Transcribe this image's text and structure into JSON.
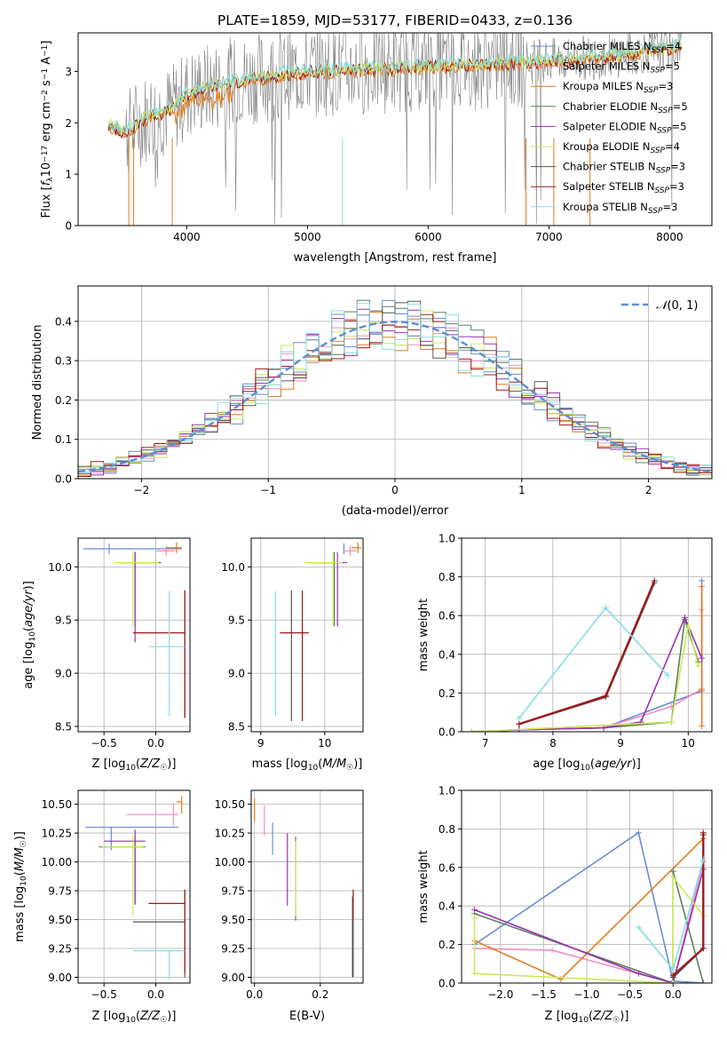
{
  "figure": {
    "title": "PLATE=1859, MJD=53177, FIBERID=0433, z=0.136"
  },
  "colors": {
    "chabrier_miles": "#6a8bd6",
    "salpeter_miles": "#f08fc0",
    "kroupa_miles": "#e07b1f",
    "chabrier_elodie": "#5f7f5f",
    "salpeter_elodie": "#9a32b0",
    "kroupa_elodie": "#cde85a",
    "chabrier_stelib": "#555555",
    "salpeter_stelib": "#a01818",
    "kroupa_stelib": "#86dde0",
    "normal": "#5a8fd6",
    "grid": "#b0b0b0"
  },
  "chart_data": [
    {
      "id": "spectrum",
      "type": "line",
      "title": "PLATE=1859, MJD=53177, FIBERID=0433, z=0.136",
      "xlabel": "wavelength [Angstrom, rest frame]",
      "ylabel_parts": [
        "Flux [",
        "f",
        "λ",
        "10",
        "−17",
        " erg cm",
        "−2",
        " s",
        "−1",
        " A",
        "−1",
        "]"
      ],
      "xlim": [
        3100,
        8350
      ],
      "ylim": [
        0,
        3.75
      ],
      "xticks": [
        4000,
        5000,
        6000,
        7000,
        8000
      ],
      "yticks": [
        0,
        1,
        2,
        3
      ],
      "data_line": {
        "x": [
          3350,
          3500,
          3600,
          3700,
          3800,
          3900,
          4000,
          4200,
          4500,
          5000,
          5500,
          6000,
          6500,
          7000,
          7500,
          8000,
          8100
        ],
        "y": [
          1.95,
          1.8,
          2.0,
          2.15,
          2.2,
          2.3,
          2.55,
          2.7,
          2.85,
          3.0,
          3.05,
          3.1,
          3.15,
          3.2,
          3.3,
          3.45,
          3.55
        ]
      },
      "legend": [
        {
          "series": "Chabrier MILES",
          "n": "4",
          "color_key": "chabrier_miles"
        },
        {
          "series": "Salpeter MILES",
          "n": "5",
          "color_key": "salpeter_miles"
        },
        {
          "series": "Kroupa MILES",
          "n": "3",
          "color_key": "kroupa_miles"
        },
        {
          "series": "Chabrier ELODIE",
          "n": "5",
          "color_key": "chabrier_elodie"
        },
        {
          "series": "Salpeter ELODIE",
          "n": "5",
          "color_key": "salpeter_elodie"
        },
        {
          "series": "Kroupa ELODIE",
          "n": "4",
          "color_key": "kroupa_elodie"
        },
        {
          "series": "Chabrier STELIB",
          "n": "3",
          "color_key": "chabrier_stelib"
        },
        {
          "series": "Salpeter STELIB",
          "n": "3",
          "color_key": "salpeter_stelib"
        },
        {
          "series": "Kroupa STELIB",
          "n": "3",
          "color_key": "kroupa_stelib"
        }
      ],
      "legend_prefix": "N",
      "legend_sub": "SSP",
      "legend_eq": "=",
      "legend_placement": "upper-right"
    },
    {
      "id": "residuals",
      "type": "histogram",
      "xlabel": "(data-model)/error",
      "ylabel": "Normed distribution",
      "xlim": [
        -2.5,
        2.5
      ],
      "ylim": [
        0,
        0.49
      ],
      "xticks": [
        -2,
        -1,
        0,
        1,
        2
      ],
      "yticks": [
        0.0,
        0.1,
        0.2,
        0.3,
        0.4
      ],
      "bin_width": 0.1,
      "legend": {
        "label_parts": [
          "𝒩",
          "(0, 1)"
        ],
        "placement": "upper-right"
      },
      "curve": "normal(0,1)"
    },
    {
      "id": "age_vs_Z",
      "type": "errorbar",
      "xlabel_parts": [
        "Z [log",
        "10",
        "(",
        "Z/Z",
        "☉",
        ")]"
      ],
      "ylabel_parts": [
        "age  [log",
        "10",
        "(",
        "age/yr",
        ")]"
      ],
      "xlim": [
        -0.75,
        0.33
      ],
      "ylim": [
        8.45,
        10.27
      ],
      "xticks": [
        -0.5,
        0.0
      ],
      "yticks": [
        8.5,
        9.0,
        9.5,
        10.0
      ],
      "points": [
        {
          "color_key": "chabrier_miles",
          "x": -0.45,
          "xerr": [
            0.25,
            0.7
          ],
          "y": 10.17,
          "yerr": [
            0.05,
            0.05
          ]
        },
        {
          "color_key": "salpeter_miles",
          "x": 0.1,
          "xerr": [
            0.1,
            0.08
          ],
          "y": 10.15,
          "yerr": [
            0.05,
            0.05
          ]
        },
        {
          "color_key": "kroupa_miles",
          "x": 0.2,
          "xerr": [
            0.1,
            0.05
          ],
          "y": 10.18,
          "yerr": [
            0.05,
            0.05
          ]
        },
        {
          "color_key": "chabrier_elodie",
          "x": -0.2,
          "xerr": [
            0.15,
            0.25
          ],
          "y": 10.04,
          "yerr": [
            0.6,
            0.1
          ]
        },
        {
          "color_key": "salpeter_elodie",
          "x": -0.2,
          "xerr": [
            0.15,
            0.25
          ],
          "y": 10.04,
          "yerr": [
            0.75,
            0.1
          ]
        },
        {
          "color_key": "kroupa_elodie",
          "x": -0.22,
          "xerr": [
            0.18,
            0.25
          ],
          "y": 10.04,
          "yerr": [
            0.6,
            0.1
          ]
        },
        {
          "color_key": "chabrier_stelib",
          "x": 0.28,
          "xerr": [
            0.0,
            0.0
          ],
          "y": 9.38,
          "yerr": [
            0.8,
            0.4
          ]
        },
        {
          "color_key": "salpeter_stelib",
          "x": 0.28,
          "xerr": [
            0.5,
            0.0
          ],
          "y": 9.38,
          "yerr": [
            0.8,
            0.4
          ]
        },
        {
          "color_key": "kroupa_stelib",
          "x": 0.13,
          "xerr": [
            0.2,
            0.15
          ],
          "y": 9.25,
          "yerr": [
            0.65,
            0.52
          ]
        }
      ]
    },
    {
      "id": "age_vs_mass",
      "type": "errorbar",
      "xlabel_parts": [
        "mass [log",
        "10",
        "(",
        "M/M",
        "☉",
        ")]"
      ],
      "xlim": [
        8.85,
        10.6
      ],
      "ylim": [
        8.45,
        10.27
      ],
      "xticks": [
        9,
        10
      ],
      "yticks": [
        8.5,
        9.0,
        9.5,
        10.0
      ],
      "points": [
        {
          "color_key": "chabrier_miles",
          "x": 10.3,
          "xerr": [
            0.0,
            0.0
          ],
          "y": 10.17,
          "yerr": [
            0.05,
            0.05
          ]
        },
        {
          "color_key": "salpeter_miles",
          "x": 10.4,
          "xerr": [
            0.1,
            0.1
          ],
          "y": 10.15,
          "yerr": [
            0.05,
            0.05
          ]
        },
        {
          "color_key": "kroupa_miles",
          "x": 10.52,
          "xerr": [
            0.1,
            0.05
          ],
          "y": 10.18,
          "yerr": [
            0.05,
            0.05
          ]
        },
        {
          "color_key": "chabrier_elodie",
          "x": 10.15,
          "xerr": [
            0.4,
            0.15
          ],
          "y": 10.04,
          "yerr": [
            0.6,
            0.1
          ]
        },
        {
          "color_key": "salpeter_elodie",
          "x": 10.2,
          "xerr": [
            0.4,
            0.15
          ],
          "y": 10.04,
          "yerr": [
            0.6,
            0.1
          ]
        },
        {
          "color_key": "kroupa_elodie",
          "x": 10.13,
          "xerr": [
            0.45,
            0.15
          ],
          "y": 10.04,
          "yerr": [
            0.6,
            0.1
          ]
        },
        {
          "color_key": "chabrier_stelib",
          "x": 9.48,
          "xerr": [
            0.0,
            0.0
          ],
          "y": 9.38,
          "yerr": [
            0.83,
            0.4
          ]
        },
        {
          "color_key": "salpeter_stelib",
          "x": 9.65,
          "xerr": [
            0.35,
            0.1
          ],
          "y": 9.38,
          "yerr": [
            0.83,
            0.4
          ]
        },
        {
          "color_key": "kroupa_stelib",
          "x": 9.23,
          "xerr": [
            0.0,
            0.0
          ],
          "y": 9.25,
          "yerr": [
            0.65,
            0.52
          ]
        }
      ]
    },
    {
      "id": "massweight_vs_age",
      "type": "line",
      "xlabel_parts": [
        "age  [log",
        "10",
        "(",
        "age/yr",
        ")]"
      ],
      "ylabel": "mass weight",
      "xlim": [
        6.65,
        10.35
      ],
      "ylim": [
        0,
        1.0
      ],
      "xticks": [
        7,
        8,
        9,
        10
      ],
      "yticks": [
        0.0,
        0.2,
        0.4,
        0.6,
        0.8,
        1.0
      ],
      "series": [
        {
          "color_key": "chabrier_miles",
          "x": [
            6.8,
            7.5,
            8.75,
            10.2,
            10.2
          ],
          "y": [
            0.0,
            0.01,
            0.02,
            0.21,
            0.78
          ]
        },
        {
          "color_key": "salpeter_miles",
          "x": [
            6.8,
            7.5,
            8.75,
            9.75,
            10.2,
            10.2
          ],
          "y": [
            0.0,
            0.01,
            0.02,
            0.13,
            0.22,
            0.63
          ]
        },
        {
          "color_key": "kroupa_miles",
          "x": [
            10.2,
            10.2,
            10.2
          ],
          "y": [
            0.75,
            0.22,
            0.03
          ]
        },
        {
          "color_key": "chabrier_elodie",
          "x": [
            6.8,
            7.5,
            8.75,
            9.75,
            9.95,
            10.15
          ],
          "y": [
            0.0,
            0.01,
            0.02,
            0.05,
            0.58,
            0.36
          ]
        },
        {
          "color_key": "salpeter_elodie",
          "x": [
            6.8,
            7.5,
            8.75,
            9.3,
            9.95,
            10.2
          ],
          "y": [
            0.0,
            0.01,
            0.02,
            0.05,
            0.59,
            0.38
          ]
        },
        {
          "color_key": "kroupa_elodie",
          "x": [
            6.8,
            9.75,
            10.0,
            10.15
          ],
          "y": [
            0.0,
            0.05,
            0.55,
            0.34
          ]
        },
        {
          "color_key": "chabrier_stelib",
          "x": [
            7.5,
            8.78,
            9.5
          ],
          "y": [
            0.04,
            0.18,
            0.77
          ]
        },
        {
          "color_key": "salpeter_stelib",
          "x": [
            7.5,
            8.78,
            9.5
          ],
          "y": [
            0.04,
            0.185,
            0.78
          ]
        },
        {
          "color_key": "kroupa_stelib",
          "x": [
            7.5,
            8.78,
            9.7
          ],
          "y": [
            0.07,
            0.64,
            0.29
          ]
        }
      ]
    },
    {
      "id": "mass_vs_Z",
      "type": "errorbar",
      "xlabel_parts": [
        "Z [log",
        "10",
        "(",
        "Z/Z",
        "☉",
        ")]"
      ],
      "ylabel_parts": [
        "mass [log",
        "10",
        "(",
        "M/M",
        "☉",
        ")]"
      ],
      "xlim": [
        -0.75,
        0.33
      ],
      "ylim": [
        8.95,
        10.62
      ],
      "xticks": [
        -0.5,
        0.0
      ],
      "yticks": [
        9.0,
        9.25,
        9.5,
        9.75,
        10.0,
        10.25,
        10.5
      ],
      "points": [
        {
          "color_key": "chabrier_miles",
          "x": -0.43,
          "xerr": [
            0.25,
            0.65
          ],
          "y": 10.3,
          "yerr": [
            0.2,
            0.0
          ]
        },
        {
          "color_key": "salpeter_miles",
          "x": 0.17,
          "xerr": [
            0.45,
            0.05
          ],
          "y": 10.41,
          "yerr": [
            0.1,
            0.1
          ]
        },
        {
          "color_key": "kroupa_miles",
          "x": 0.25,
          "xerr": [
            0.05,
            0.0
          ],
          "y": 10.52,
          "yerr": [
            0.1,
            0.05
          ]
        },
        {
          "color_key": "chabrier_elodie",
          "x": -0.2,
          "xerr": [
            0.35,
            0.1
          ],
          "y": 10.13,
          "yerr": [
            0.5,
            0.1
          ]
        },
        {
          "color_key": "salpeter_elodie",
          "x": -0.2,
          "xerr": [
            0.3,
            0.1
          ],
          "y": 10.18,
          "yerr": [
            0.55,
            0.1
          ]
        },
        {
          "color_key": "kroupa_elodie",
          "x": -0.22,
          "xerr": [
            0.3,
            0.1
          ],
          "y": 10.13,
          "yerr": [
            0.6,
            0.1
          ]
        },
        {
          "color_key": "chabrier_stelib",
          "x": 0.28,
          "xerr": [
            0.5,
            0.0
          ],
          "y": 9.48,
          "yerr": [
            0.48,
            0.28
          ]
        },
        {
          "color_key": "salpeter_stelib",
          "x": 0.28,
          "xerr": [
            0.35,
            0.0
          ],
          "y": 9.64,
          "yerr": [
            0.6,
            0.12
          ]
        },
        {
          "color_key": "kroupa_stelib",
          "x": 0.13,
          "xerr": [
            0.35,
            0.15
          ],
          "y": 9.23,
          "yerr": [
            0.25,
            0.0
          ]
        }
      ]
    },
    {
      "id": "mass_vs_ebv",
      "type": "errorbar",
      "xlabel": "E(B-V)",
      "xlim": [
        -0.01,
        0.33
      ],
      "ylim": [
        8.95,
        10.62
      ],
      "xticks": [
        0.0,
        0.2
      ],
      "yticks": [
        9.0,
        9.25,
        9.5,
        9.75,
        10.0,
        10.25,
        10.5
      ],
      "points": [
        {
          "color_key": "kroupa_miles",
          "x": 0.0,
          "y": 10.45,
          "yerr": [
            0.1,
            0.1
          ]
        },
        {
          "color_key": "salpeter_miles",
          "x": 0.03,
          "y": 10.36,
          "yerr": [
            0.13,
            0.13
          ]
        },
        {
          "color_key": "chabrier_miles",
          "x": 0.055,
          "y": 10.2,
          "yerr": [
            0.14,
            0.14
          ]
        },
        {
          "color_key": "salpeter_elodie",
          "x": 0.1,
          "y": 9.95,
          "yerr": [
            0.33,
            0.3
          ]
        },
        {
          "color_key": "chabrier_elodie",
          "x": 0.125,
          "y": 9.85,
          "yerr": [
            0.36,
            0.37
          ]
        },
        {
          "color_key": "kroupa_elodie",
          "x": 0.125,
          "y": 9.85,
          "yerr": [
            0.32,
            0.33
          ]
        },
        {
          "color_key": "chabrier_stelib",
          "x": 0.298,
          "y": 9.5,
          "yerr": [
            0.5,
            0.2
          ]
        },
        {
          "color_key": "salpeter_stelib",
          "x": 0.3,
          "y": 9.4,
          "yerr": [
            0.4,
            0.36
          ]
        },
        {
          "color_key": "kroupa_stelib",
          "x": 0.302,
          "y": 9.3,
          "yerr": [
            0.3,
            0.2
          ]
        }
      ]
    },
    {
      "id": "massweight_vs_Z",
      "type": "line",
      "xlabel_parts": [
        "Z [log",
        "10",
        "(",
        "Z/Z",
        "☉",
        ")]"
      ],
      "ylabel": "mass weight",
      "xlim": [
        -2.45,
        0.45
      ],
      "ylim": [
        0,
        1.0
      ],
      "xticks": [
        -2.0,
        -1.5,
        -1.0,
        -0.5,
        0.0
      ],
      "yticks": [
        0.0,
        0.2,
        0.4,
        0.6,
        0.8,
        1.0
      ],
      "series": [
        {
          "color_key": "chabrier_miles",
          "x": [
            -2.3,
            -0.4,
            0.0,
            0.35
          ],
          "y": [
            0.2,
            0.78,
            0.01,
            0.0
          ]
        },
        {
          "color_key": "salpeter_miles",
          "x": [
            -2.3,
            -1.4,
            0.0,
            0.35
          ],
          "y": [
            0.18,
            0.17,
            0.0,
            0.63
          ]
        },
        {
          "color_key": "kroupa_miles",
          "x": [
            -2.3,
            -1.3,
            0.35
          ],
          "y": [
            0.22,
            0.02,
            0.75
          ]
        },
        {
          "color_key": "chabrier_elodie",
          "x": [
            -2.3,
            0.0,
            0.0,
            0.35
          ],
          "y": [
            0.36,
            0.0,
            0.58,
            0.0
          ]
        },
        {
          "color_key": "salpeter_elodie",
          "x": [
            -2.3,
            -0.4,
            0.0,
            0.35
          ],
          "y": [
            0.38,
            0.05,
            0.0,
            0.59
          ]
        },
        {
          "color_key": "kroupa_elodie",
          "x": [
            -2.3,
            -2.3,
            0.0,
            0.0,
            0.35
          ],
          "y": [
            0.34,
            0.05,
            0.0,
            0.55,
            0.35
          ]
        },
        {
          "color_key": "chabrier_stelib",
          "x": [
            0.0,
            0.35,
            0.35
          ],
          "y": [
            0.03,
            0.18,
            0.77
          ]
        },
        {
          "color_key": "salpeter_stelib",
          "x": [
            0.0,
            0.35,
            0.35
          ],
          "y": [
            0.04,
            0.18,
            0.78
          ]
        },
        {
          "color_key": "kroupa_stelib",
          "x": [
            -0.4,
            0.0,
            0.35
          ],
          "y": [
            0.29,
            0.07,
            0.64
          ]
        }
      ]
    }
  ]
}
